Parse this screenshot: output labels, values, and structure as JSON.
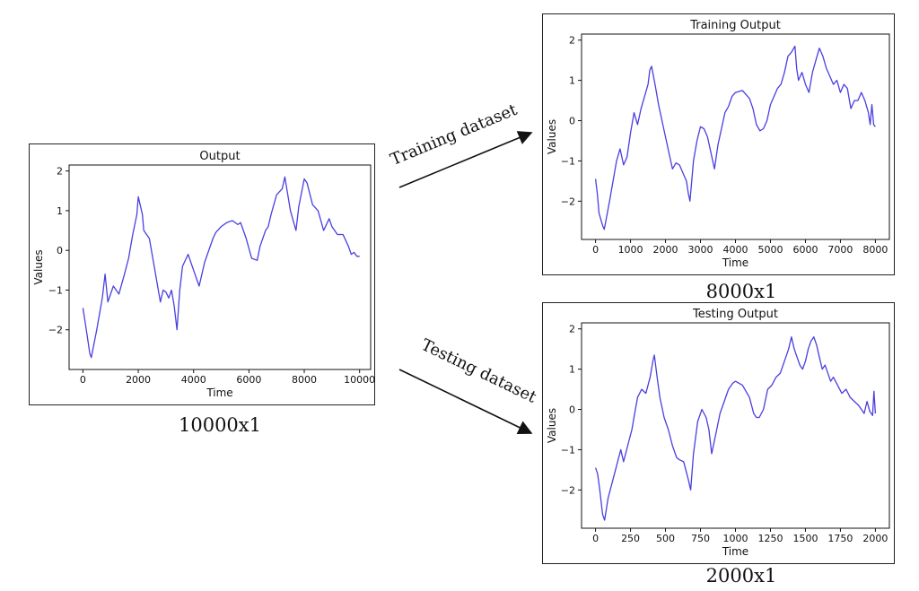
{
  "colors": {
    "line": "#4a3fe0",
    "frame": "#222222",
    "text": "#111111"
  },
  "captions": {
    "full": "10000x1",
    "train": "8000x1",
    "test": "2000x1"
  },
  "arrows": {
    "train_label": "Training dataset",
    "test_label": "Testing dataset"
  },
  "chart_data": [
    {
      "type": "line",
      "title": "Output",
      "xlabel": "Time",
      "ylabel": "Values",
      "xlim": [
        -500,
        10400
      ],
      "ylim": [
        -3.0,
        2.15
      ],
      "xticks": [
        0,
        2000,
        4000,
        6000,
        8000,
        10000
      ],
      "yticks": [
        -2,
        -1,
        0,
        1,
        2
      ],
      "x": [
        0,
        100,
        250,
        300,
        500,
        700,
        800,
        900,
        1100,
        1300,
        1500,
        1650,
        1800,
        1950,
        2000,
        2150,
        2200,
        2400,
        2600,
        2700,
        2800,
        2900,
        3000,
        3100,
        3200,
        3300,
        3400,
        3500,
        3600,
        3800,
        4000,
        4200,
        4400,
        4700,
        4800,
        5000,
        5200,
        5400,
        5600,
        5700,
        5900,
        6100,
        6300,
        6400,
        6600,
        6700,
        6800,
        7000,
        7200,
        7300,
        7500,
        7700,
        7800,
        8000,
        8100,
        8300,
        8500,
        8700,
        8900,
        9000,
        9200,
        9400,
        9600,
        9700,
        9800,
        9900,
        10000
      ],
      "y": [
        -1.45,
        -1.9,
        -2.6,
        -2.7,
        -2.0,
        -1.2,
        -0.6,
        -1.3,
        -0.9,
        -1.1,
        -0.6,
        -0.2,
        0.4,
        0.9,
        1.35,
        0.9,
        0.5,
        0.3,
        -0.5,
        -0.9,
        -1.3,
        -1.0,
        -1.05,
        -1.2,
        -1.0,
        -1.4,
        -2.0,
        -1.0,
        -0.4,
        -0.1,
        -0.5,
        -0.9,
        -0.3,
        0.3,
        0.45,
        0.6,
        0.7,
        0.75,
        0.65,
        0.7,
        0.3,
        -0.2,
        -0.25,
        0.1,
        0.5,
        0.6,
        0.9,
        1.4,
        1.55,
        1.85,
        1.0,
        0.5,
        1.1,
        1.8,
        1.7,
        1.15,
        1.0,
        0.5,
        0.8,
        0.6,
        0.4,
        0.4,
        0.1,
        -0.1,
        -0.05,
        -0.15,
        -0.15
      ]
    },
    {
      "type": "line",
      "title": "Training Output",
      "xlabel": "Time",
      "ylabel": "Values",
      "xlim": [
        -400,
        8400
      ],
      "ylim": [
        -2.95,
        2.15
      ],
      "xticks": [
        0,
        1000,
        2000,
        3000,
        4000,
        5000,
        6000,
        7000,
        8000
      ],
      "yticks": [
        -2,
        -1,
        0,
        1,
        2
      ],
      "x": [
        0,
        50,
        100,
        200,
        250,
        400,
        500,
        600,
        700,
        800,
        900,
        1000,
        1100,
        1200,
        1300,
        1400,
        1500,
        1550,
        1600,
        1700,
        1800,
        1900,
        2000,
        2100,
        2200,
        2300,
        2400,
        2500,
        2600,
        2650,
        2700,
        2800,
        2900,
        3000,
        3100,
        3200,
        3300,
        3400,
        3500,
        3600,
        3700,
        3800,
        3900,
        4000,
        4200,
        4400,
        4500,
        4600,
        4700,
        4800,
        4900,
        5000,
        5100,
        5200,
        5300,
        5400,
        5500,
        5600,
        5700,
        5750,
        5800,
        5900,
        6000,
        6100,
        6200,
        6300,
        6400,
        6500,
        6600,
        6700,
        6800,
        6900,
        7000,
        7100,
        7200,
        7300,
        7400,
        7500,
        7600,
        7700,
        7800,
        7850,
        7900,
        7950,
        8000
      ],
      "y": [
        -1.45,
        -1.8,
        -2.3,
        -2.6,
        -2.7,
        -2.0,
        -1.5,
        -1.0,
        -0.7,
        -1.1,
        -0.9,
        -0.3,
        0.2,
        -0.1,
        0.3,
        0.6,
        0.9,
        1.25,
        1.35,
        0.9,
        0.4,
        0.0,
        -0.4,
        -0.8,
        -1.2,
        -1.05,
        -1.1,
        -1.3,
        -1.5,
        -1.8,
        -2.0,
        -1.0,
        -0.5,
        -0.15,
        -0.2,
        -0.4,
        -0.8,
        -1.2,
        -0.6,
        -0.2,
        0.2,
        0.35,
        0.6,
        0.7,
        0.75,
        0.55,
        0.3,
        -0.1,
        -0.25,
        -0.2,
        0.0,
        0.4,
        0.6,
        0.8,
        0.9,
        1.2,
        1.6,
        1.7,
        1.85,
        1.3,
        1.0,
        1.2,
        0.9,
        0.7,
        1.2,
        1.5,
        1.8,
        1.6,
        1.3,
        1.1,
        0.9,
        1.0,
        0.7,
        0.9,
        0.8,
        0.3,
        0.5,
        0.5,
        0.7,
        0.5,
        0.2,
        -0.1,
        0.4,
        -0.1,
        -0.15
      ]
    },
    {
      "type": "line",
      "title": "Testing Output",
      "xlabel": "Time",
      "ylabel": "Values",
      "xlim": [
        -100,
        2100
      ],
      "ylim": [
        -2.95,
        2.15
      ],
      "xticks": [
        0,
        250,
        500,
        750,
        1000,
        1250,
        1500,
        1750,
        2000
      ],
      "xtick_labels": [
        "0",
        "250",
        "500",
        "750",
        "1000",
        "1250",
        "1500",
        "1750",
        "2000"
      ],
      "yticks": [
        -2,
        -1,
        0,
        1,
        2
      ],
      "x": [
        0,
        15,
        30,
        50,
        65,
        90,
        120,
        150,
        180,
        200,
        230,
        260,
        280,
        300,
        330,
        360,
        390,
        410,
        420,
        440,
        460,
        490,
        520,
        550,
        580,
        600,
        630,
        660,
        680,
        700,
        730,
        760,
        790,
        810,
        830,
        860,
        890,
        920,
        950,
        980,
        1000,
        1050,
        1100,
        1130,
        1150,
        1170,
        1200,
        1230,
        1260,
        1290,
        1320,
        1350,
        1380,
        1400,
        1420,
        1440,
        1460,
        1480,
        1500,
        1520,
        1540,
        1560,
        1580,
        1600,
        1620,
        1640,
        1660,
        1680,
        1700,
        1730,
        1760,
        1790,
        1820,
        1850,
        1880,
        1900,
        1920,
        1940,
        1960,
        1980,
        1990,
        2000
      ],
      "y": [
        -1.45,
        -1.6,
        -2.0,
        -2.6,
        -2.75,
        -2.2,
        -1.8,
        -1.4,
        -1.0,
        -1.3,
        -0.9,
        -0.5,
        -0.1,
        0.3,
        0.5,
        0.4,
        0.8,
        1.2,
        1.35,
        0.8,
        0.3,
        -0.2,
        -0.5,
        -0.9,
        -1.2,
        -1.25,
        -1.3,
        -1.7,
        -2.0,
        -1.1,
        -0.3,
        0.0,
        -0.2,
        -0.5,
        -1.1,
        -0.6,
        -0.1,
        0.2,
        0.5,
        0.65,
        0.7,
        0.6,
        0.3,
        -0.1,
        -0.2,
        -0.2,
        0.0,
        0.5,
        0.6,
        0.8,
        0.9,
        1.2,
        1.5,
        1.8,
        1.5,
        1.3,
        1.1,
        1.0,
        1.2,
        1.5,
        1.7,
        1.8,
        1.6,
        1.3,
        1.0,
        1.1,
        0.9,
        0.7,
        0.8,
        0.6,
        0.4,
        0.5,
        0.3,
        0.2,
        0.1,
        0.0,
        -0.1,
        0.2,
        -0.05,
        -0.15,
        0.45,
        -0.1
      ]
    }
  ]
}
